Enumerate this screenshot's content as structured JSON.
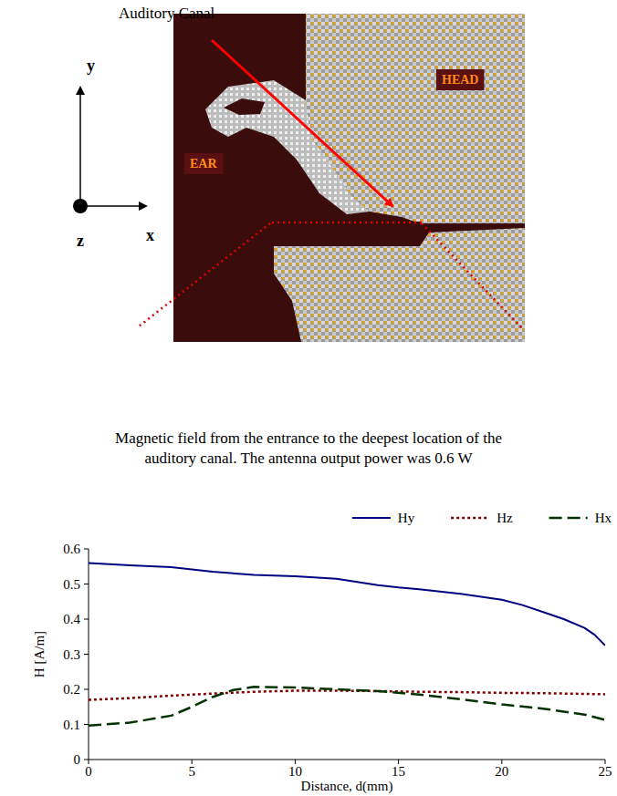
{
  "diagram": {
    "pointer_label": "Auditory Canal",
    "axis_y": "y",
    "axis_x": "x",
    "axis_z": "z",
    "region_ear": "EAR",
    "region_head": "HEAD",
    "caption": "Magnetic field from the entrance to the deepest location of the auditory canal. The antenna output power was 0.6 W"
  },
  "chart_data": {
    "type": "line",
    "x_label": "Distance, d(mm)",
    "y_label": "H [A/m]",
    "xlim": [
      0,
      25
    ],
    "xticks": [
      0,
      5,
      10,
      15,
      20,
      25
    ],
    "ylim": [
      0,
      0.6
    ],
    "yticks": [
      0,
      0.1,
      0.2,
      0.3,
      0.4,
      0.5,
      0.6
    ],
    "grid": false,
    "legend": "top",
    "series": [
      {
        "name": "Hy",
        "color": "#000080",
        "line_style": "solid",
        "x": [
          0,
          2,
          4,
          6,
          8,
          10,
          12,
          14,
          15,
          16,
          18,
          20,
          21,
          22,
          23,
          24,
          24.5,
          25
        ],
        "values": [
          0.56,
          0.553,
          0.548,
          0.535,
          0.526,
          0.522,
          0.515,
          0.497,
          0.49,
          0.485,
          0.472,
          0.455,
          0.44,
          0.42,
          0.4,
          0.375,
          0.355,
          0.325
        ]
      },
      {
        "name": "Hz",
        "color": "#800000",
        "line_style": "dotted",
        "x": [
          0,
          2,
          4,
          6,
          8,
          10,
          12,
          14,
          16,
          18,
          20,
          22,
          24,
          25
        ],
        "values": [
          0.17,
          0.175,
          0.182,
          0.188,
          0.193,
          0.196,
          0.196,
          0.195,
          0.193,
          0.192,
          0.19,
          0.189,
          0.187,
          0.186
        ]
      },
      {
        "name": "Hx",
        "color": "#003300",
        "line_style": "dashed",
        "x": [
          0,
          2,
          4,
          5,
          6,
          7,
          8,
          10,
          12,
          14,
          16,
          18,
          20,
          22,
          24,
          25
        ],
        "values": [
          0.097,
          0.105,
          0.125,
          0.15,
          0.178,
          0.198,
          0.207,
          0.205,
          0.2,
          0.195,
          0.185,
          0.172,
          0.157,
          0.145,
          0.128,
          0.113
        ]
      }
    ]
  }
}
